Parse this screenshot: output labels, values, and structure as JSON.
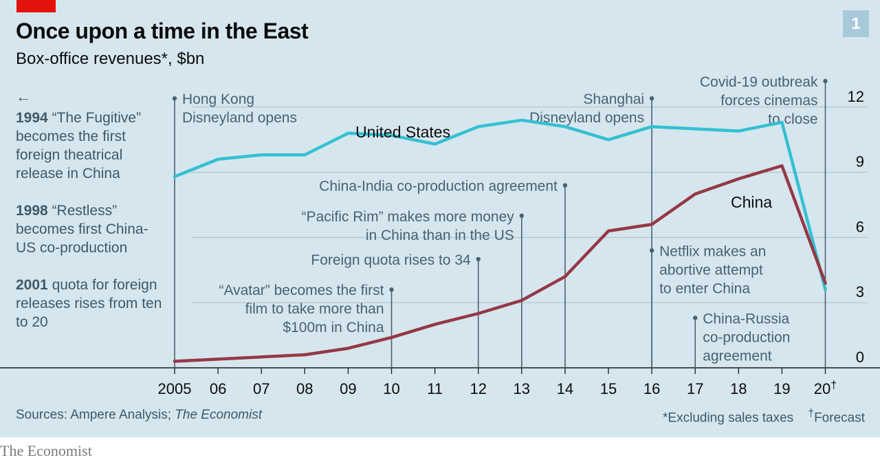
{
  "header": {
    "title": "Once upon a time in the East",
    "subtitle": "Box-office revenues*, $bn",
    "badge": "1"
  },
  "sidebar": {
    "arrow": "←",
    "items": [
      {
        "year": "1994",
        "text": "“The Fugitive” becomes the first foreign theatrical release in China"
      },
      {
        "year": "1998",
        "text": "“Restless” becomes first China-US co-production"
      },
      {
        "year": "2001",
        "text": "quota for foreign releases rises from ten to 20"
      }
    ]
  },
  "footer": {
    "source_prefix": "Sources: Ampere Analysis; ",
    "source_italic": "The Economist",
    "note_excl": "*Excluding sales taxes",
    "note_forecast_mark": "†",
    "note_forecast": "Forecast",
    "brand": "The Economist"
  },
  "colors": {
    "background": "#d6e6ee",
    "united_states": "#33c0d3",
    "china": "#963846",
    "annotation": "#4a6170",
    "gridline": "#a9bfc9",
    "accent_red": "#e3120b"
  },
  "chart_data": {
    "type": "line",
    "title": "Once upon a time in the East",
    "subtitle": "Box-office revenues*, $bn",
    "x": [
      2005,
      2006,
      2007,
      2008,
      2009,
      2010,
      2011,
      2012,
      2013,
      2014,
      2015,
      2016,
      2017,
      2018,
      2019,
      2020
    ],
    "x_tick_labels": [
      "2005",
      "06",
      "07",
      "08",
      "09",
      "10",
      "11",
      "12",
      "13",
      "14",
      "15",
      "16",
      "17",
      "18",
      "19",
      "20"
    ],
    "x_tick_suffix_last": "†",
    "ylim": [
      0,
      13
    ],
    "yticks": [
      0,
      3,
      6,
      9,
      12
    ],
    "y_axis_side": "right",
    "grid": "horizontal",
    "series": [
      {
        "name": "United States",
        "color": "#33c0d3",
        "values": [
          8.8,
          9.6,
          9.8,
          9.8,
          10.8,
          10.7,
          10.3,
          11.1,
          11.4,
          11.1,
          10.5,
          11.1,
          11.0,
          10.9,
          11.3,
          3.6
        ]
      },
      {
        "name": "China",
        "color": "#963846",
        "values": [
          0.3,
          0.4,
          0.5,
          0.6,
          0.9,
          1.4,
          2.0,
          2.5,
          3.1,
          4.2,
          6.3,
          6.6,
          8.0,
          8.7,
          9.3,
          3.9
        ]
      }
    ],
    "annotations": [
      {
        "x": 2005,
        "label_y": 12.4,
        "text": [
          "Hong Kong",
          "Disneyland opens"
        ],
        "align": "left"
      },
      {
        "x": 2010,
        "label_y": 3.6,
        "text": [
          "“Avatar” becomes the first",
          "film to take more than",
          "$100m in China"
        ],
        "align": "right"
      },
      {
        "x": 2012,
        "label_y": 5.0,
        "text": [
          "Foreign quota rises to 34"
        ],
        "align": "right"
      },
      {
        "x": 2013,
        "label_y": 7.0,
        "text": [
          "“Pacific Rim” makes more money",
          "in China than in the US"
        ],
        "align": "right"
      },
      {
        "x": 2014,
        "label_y": 8.4,
        "text": [
          "China-India co-production agreement"
        ],
        "align": "right"
      },
      {
        "x": 2016,
        "label_y": 12.4,
        "text": [
          "Shanghai",
          "Disneyland opens"
        ],
        "align": "right"
      },
      {
        "x": 2016,
        "label_y": 5.4,
        "text": [
          "Netflix makes an",
          "abortive attempt",
          "to enter China"
        ],
        "align": "left"
      },
      {
        "x": 2017,
        "label_y": 2.3,
        "text": [
          "China-Russia",
          "co-production",
          "agreement"
        ],
        "align": "left"
      },
      {
        "x": 2020,
        "label_y": 13.2,
        "text": [
          "Covid-19 outbreak",
          "forces cinemas",
          "to close"
        ],
        "align": "right"
      }
    ]
  }
}
